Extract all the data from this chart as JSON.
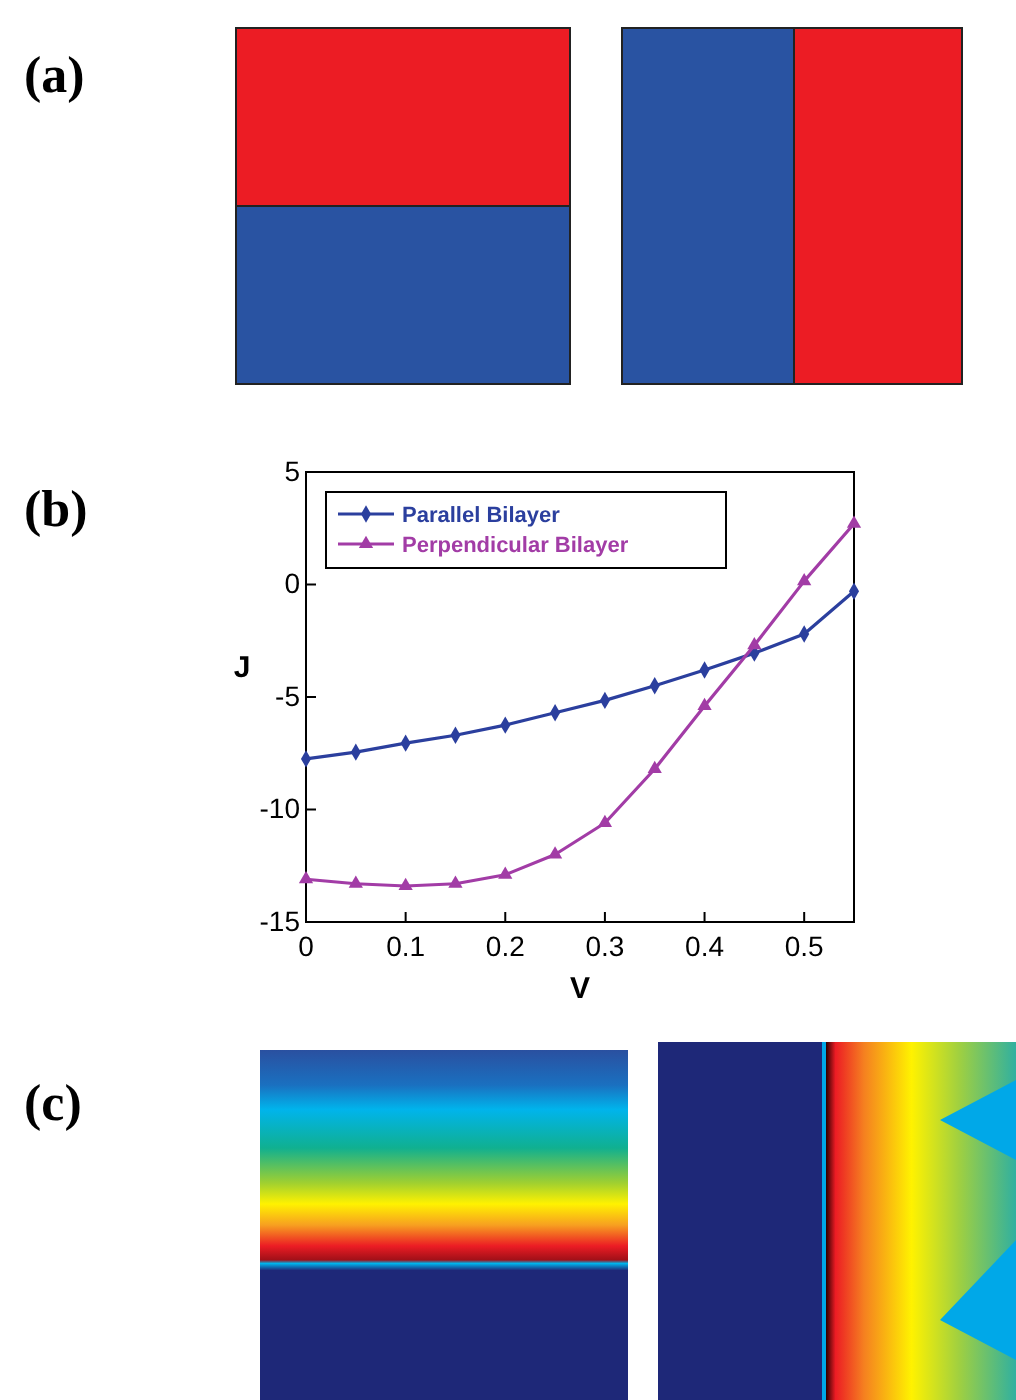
{
  "chart_data": {
    "type": "line",
    "xlabel": "V",
    "ylabel": "J",
    "x": [
      0,
      0.05,
      0.1,
      0.15,
      0.2,
      0.25,
      0.3,
      0.35,
      0.4,
      0.45,
      0.5,
      0.55
    ],
    "series": [
      {
        "name": "Parallel Bilayer",
        "color": "#2b3f9e",
        "marker": "diamond",
        "values": [
          -7.75,
          -7.45,
          -7.05,
          -6.7,
          -6.25,
          -5.7,
          -5.15,
          -4.5,
          -3.8,
          -3.05,
          -2.2,
          -0.3
        ]
      },
      {
        "name": "Perpendicular Bilayer",
        "color": "#a23ca6",
        "marker": "triangle",
        "values": [
          -13.1,
          -13.3,
          -13.4,
          -13.3,
          -12.9,
          -12.0,
          -10.6,
          -8.2,
          -5.4,
          -2.7,
          0.15,
          2.7
        ]
      }
    ],
    "xlim": [
      0,
      0.55
    ],
    "ylim": [
      -15,
      5
    ],
    "xticks": [
      0,
      0.1,
      0.2,
      0.3,
      0.4,
      0.5
    ],
    "yticks": [
      -15,
      -10,
      -5,
      0,
      5
    ],
    "legend": "top left",
    "grid": false,
    "line_style": "solid",
    "annotations": [
      "(a)",
      "(b)",
      "(c)"
    ]
  }
}
